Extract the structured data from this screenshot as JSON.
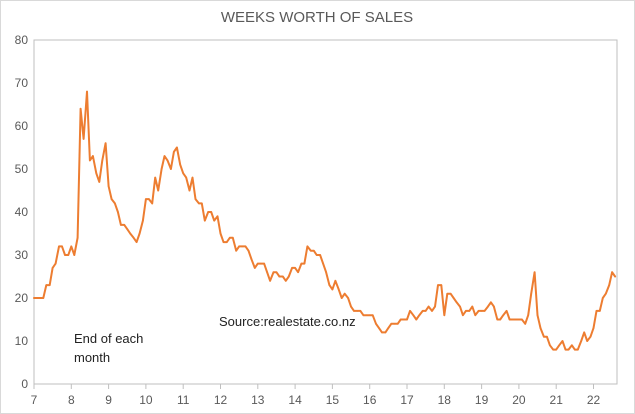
{
  "chart_data": {
    "type": "line",
    "title": "WEEKS WORTH OF SALES",
    "xlabel": "",
    "ylabel": "",
    "xlim": [
      7,
      22.6
    ],
    "ylim": [
      0,
      80
    ],
    "x_ticks": [
      "7",
      "8",
      "9",
      "10",
      "11",
      "12",
      "13",
      "14",
      "15",
      "16",
      "17",
      "18",
      "19",
      "20",
      "21",
      "22"
    ],
    "y_ticks": [
      "0",
      "10",
      "20",
      "30",
      "40",
      "50",
      "60",
      "70",
      "80"
    ],
    "grid": false,
    "legend": "none",
    "annotations": {
      "period_note": [
        "End of each",
        "month"
      ],
      "source": "Source:realestate.co.nz"
    },
    "colors": {
      "line": "#ed7d31",
      "axis": "#595959",
      "border": "#bfbfbf"
    },
    "series": [
      {
        "x": [
          7.0,
          7.08,
          7.17,
          7.25,
          7.33,
          7.42,
          7.5,
          7.58,
          7.67,
          7.75,
          7.83,
          7.92,
          8.0,
          8.08,
          8.17,
          8.25,
          8.33,
          8.42,
          8.5,
          8.58,
          8.67,
          8.75,
          8.83,
          8.92,
          9.0,
          9.08,
          9.17,
          9.25,
          9.33,
          9.42,
          9.5,
          9.58,
          9.67,
          9.75,
          9.83,
          9.92,
          10.0,
          10.08,
          10.17,
          10.25,
          10.33,
          10.42,
          10.5,
          10.58,
          10.67,
          10.75,
          10.83,
          10.92,
          11.0,
          11.08,
          11.17,
          11.25,
          11.33,
          11.42,
          11.5,
          11.58,
          11.67,
          11.75,
          11.83,
          11.92,
          12.0,
          12.08,
          12.17,
          12.25,
          12.33,
          12.42,
          12.5,
          12.58,
          12.67,
          12.75,
          12.83,
          12.92,
          13.0,
          13.08,
          13.17,
          13.25,
          13.33,
          13.42,
          13.5,
          13.58,
          13.67,
          13.75,
          13.83,
          13.92,
          14.0,
          14.08,
          14.17,
          14.25,
          14.33,
          14.42,
          14.5,
          14.58,
          14.67,
          14.75,
          14.83,
          14.92,
          15.0,
          15.08,
          15.17,
          15.25,
          15.33,
          15.42,
          15.5,
          15.58,
          15.67,
          15.75,
          15.83,
          15.92,
          16.0,
          16.08,
          16.17,
          16.25,
          16.33,
          16.42,
          16.5,
          16.58,
          16.67,
          16.75,
          16.83,
          16.92,
          17.0,
          17.08,
          17.17,
          17.25,
          17.33,
          17.42,
          17.5,
          17.58,
          17.67,
          17.75,
          17.83,
          17.92,
          18.0,
          18.08,
          18.17,
          18.25,
          18.33,
          18.42,
          18.5,
          18.58,
          18.67,
          18.75,
          18.83,
          18.92,
          19.0,
          19.08,
          19.17,
          19.25,
          19.33,
          19.42,
          19.5,
          19.58,
          19.67,
          19.75,
          19.83,
          19.92,
          20.0,
          20.08,
          20.17,
          20.25,
          20.33,
          20.42,
          20.5,
          20.58,
          20.67,
          20.75,
          20.83,
          20.92,
          21.0,
          21.08,
          21.17,
          21.25,
          21.33,
          21.42,
          21.5,
          21.58,
          21.67,
          21.75,
          21.83,
          21.92,
          22.0,
          22.08,
          22.17,
          22.25,
          22.33,
          22.42,
          22.5,
          22.58
        ],
        "y": [
          20,
          20,
          20,
          20,
          23,
          23,
          27,
          28,
          32,
          32,
          30,
          30,
          32,
          30,
          34,
          64,
          57,
          68,
          52,
          53,
          49,
          47,
          52,
          56,
          46,
          43,
          42,
          40,
          37,
          37,
          36,
          35,
          34,
          33,
          35,
          38,
          43,
          43,
          42,
          48,
          45,
          50,
          53,
          52,
          50,
          54,
          55,
          51,
          49,
          48,
          45,
          48,
          43,
          42,
          42,
          38,
          40,
          40,
          38,
          39,
          35,
          33,
          33,
          34,
          34,
          31,
          32,
          32,
          32,
          31,
          29,
          27,
          28,
          28,
          28,
          26,
          24,
          26,
          26,
          25,
          25,
          24,
          25,
          27,
          27,
          26,
          28,
          28,
          32,
          31,
          31,
          30,
          30,
          28,
          26,
          23,
          22,
          24,
          22,
          20,
          21,
          20,
          18,
          17,
          17,
          17,
          16,
          16,
          16,
          16,
          14,
          13,
          12,
          12,
          13,
          14,
          14,
          14,
          15,
          15,
          15,
          17,
          16,
          15,
          16,
          17,
          17,
          18,
          17,
          18,
          23,
          23,
          16,
          21,
          21,
          20,
          19,
          18,
          16,
          17,
          17,
          18,
          16,
          17,
          17,
          17,
          18,
          19,
          18,
          15,
          15,
          16,
          17,
          15,
          15,
          15,
          15,
          15,
          14,
          16,
          21,
          26,
          16,
          13,
          11,
          11,
          9,
          8,
          8,
          9,
          10,
          8,
          8,
          9,
          8,
          8,
          10,
          12,
          10,
          11,
          13,
          17,
          17,
          20,
          21,
          23,
          26,
          25
        ]
      }
    ]
  }
}
